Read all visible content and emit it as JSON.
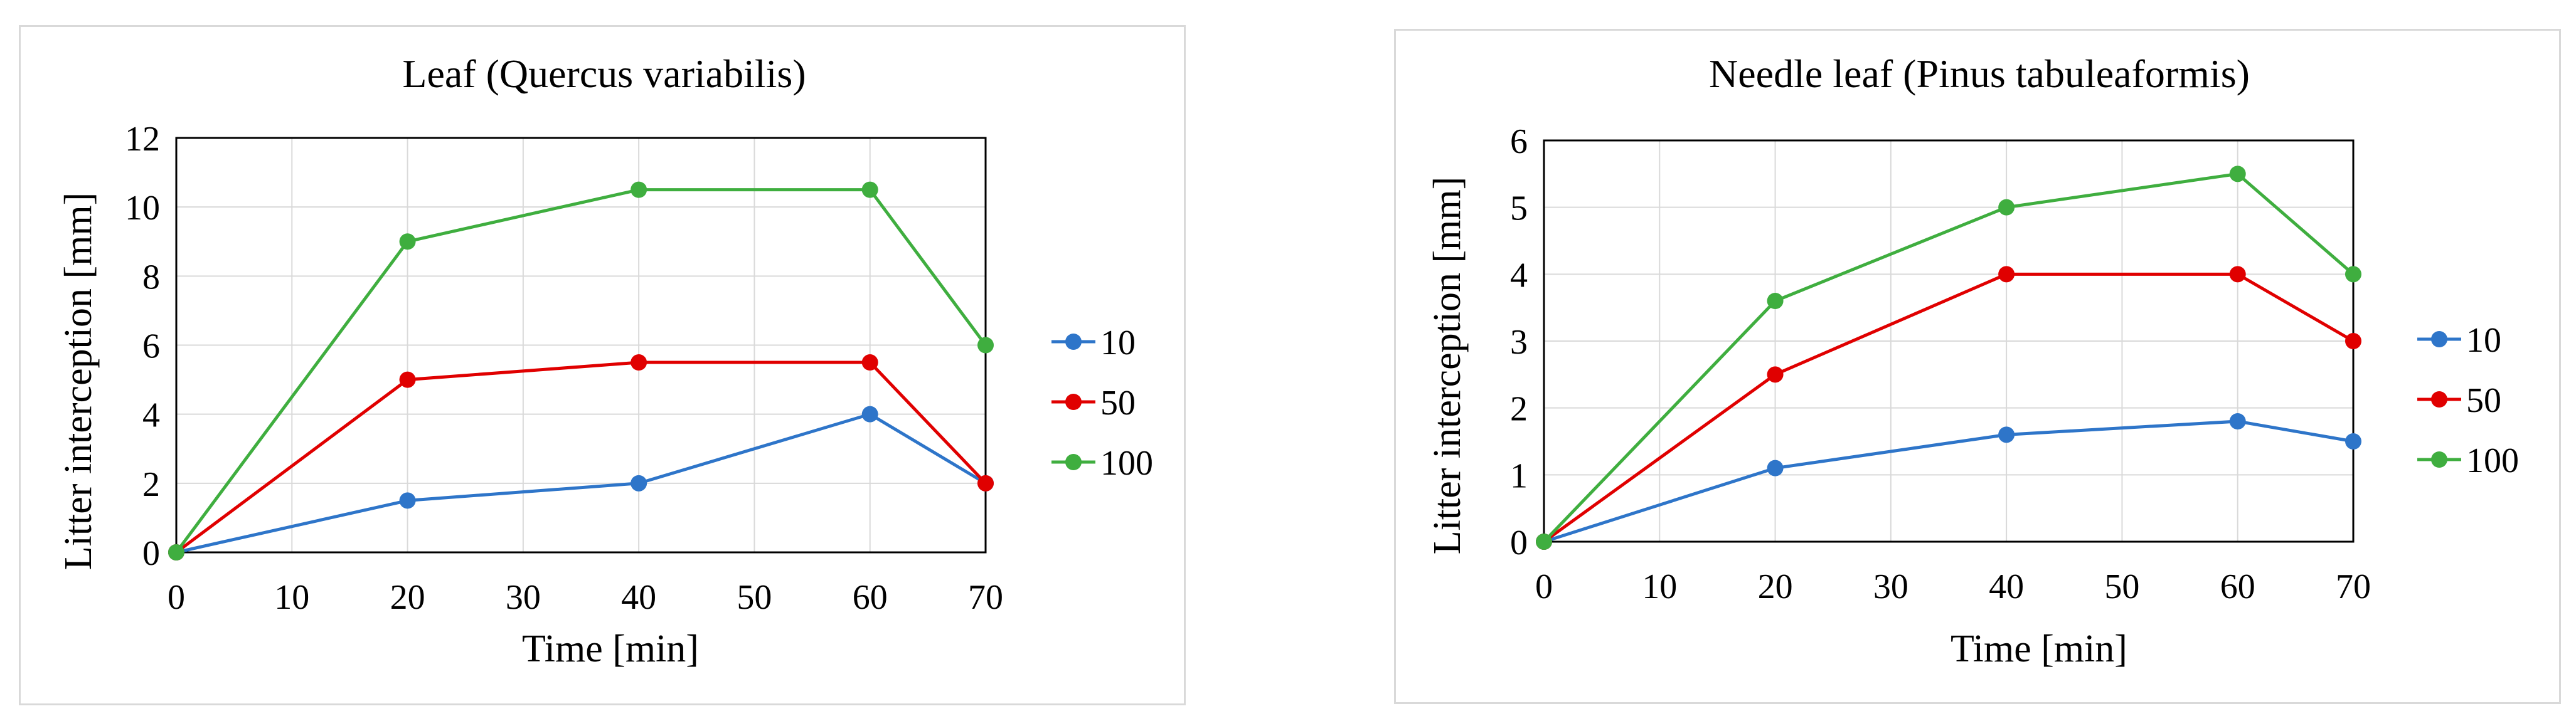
{
  "chart_data": [
    {
      "type": "line",
      "title": "Leaf (Quercus variabilis)",
      "xlabel": "Time [min]",
      "ylabel": "Litter interception [mm]",
      "xlim": [
        0,
        70
      ],
      "ylim": [
        0,
        12
      ],
      "xticks": [
        0,
        10,
        20,
        30,
        40,
        50,
        60,
        70
      ],
      "yticks": [
        0,
        2,
        4,
        6,
        8,
        10,
        12
      ],
      "grid": true,
      "legend_position": "right",
      "x": [
        0,
        20,
        40,
        60,
        70
      ],
      "series": [
        {
          "name": "10",
          "color": "#2e75c9",
          "values": [
            0,
            1.5,
            2.0,
            4.0,
            2.0
          ]
        },
        {
          "name": "50",
          "color": "#e00000",
          "values": [
            0,
            5.0,
            5.5,
            5.5,
            2.0
          ]
        },
        {
          "name": "100",
          "color": "#3fae3f",
          "values": [
            0,
            9.0,
            10.5,
            10.5,
            6.0
          ]
        }
      ]
    },
    {
      "type": "line",
      "title": "Needle leaf (Pinus tabuleaformis)",
      "xlabel": "Time [min]",
      "ylabel": "Litter interception [mm]",
      "xlim": [
        0,
        70
      ],
      "ylim": [
        0,
        6
      ],
      "xticks": [
        0,
        10,
        20,
        30,
        40,
        50,
        60,
        70
      ],
      "yticks": [
        0,
        1,
        2,
        3,
        4,
        5,
        6
      ],
      "grid": true,
      "legend_position": "right",
      "x": [
        0,
        20,
        40,
        60,
        70
      ],
      "series": [
        {
          "name": "10",
          "color": "#2e75c9",
          "values": [
            0,
            1.1,
            1.6,
            1.8,
            1.5
          ]
        },
        {
          "name": "50",
          "color": "#e00000",
          "values": [
            0,
            2.5,
            4.0,
            4.0,
            3.0
          ]
        },
        {
          "name": "100",
          "color": "#3fae3f",
          "values": [
            0,
            3.6,
            5.0,
            5.5,
            4.0
          ]
        }
      ]
    }
  ]
}
